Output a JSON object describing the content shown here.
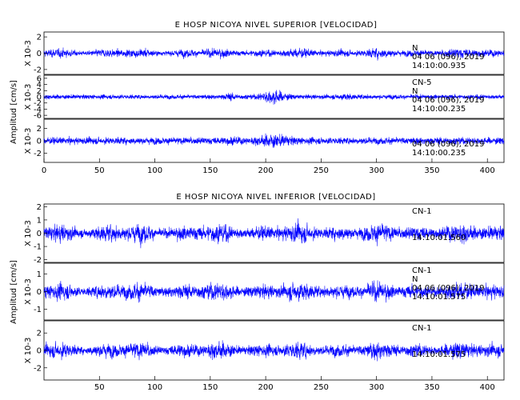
{
  "chart_data": [
    {
      "type": "line",
      "title": "E HOSP NICOYA NIVEL SUPERIOR [VELOCIDAD]",
      "ylabel": "Amplitud [cm/s]",
      "xlim": [
        0,
        415
      ],
      "x_ticks": [
        "0",
        "50",
        "100",
        "150",
        "200",
        "250",
        "300",
        "350",
        "400"
      ],
      "series_color": "#0000ff",
      "panels": [
        {
          "scale_label": "X 10-3",
          "y_ticks": [
            "2",
            "0",
            "-2"
          ],
          "ylim": [
            -2.6,
            2.6
          ],
          "peak_amplitude": 1.6,
          "envelope": "stationary",
          "annotation_lines": [
            "",
            "N",
            "04 06 (096), 2019",
            "14:10:00.935"
          ]
        },
        {
          "scale_label": "X 10-3",
          "y_ticks": [
            "6",
            "4",
            "2",
            "0",
            "-2",
            "-4",
            "-6"
          ],
          "ylim": [
            -7,
            7
          ],
          "peak_amplitude": 6.2,
          "envelope": "burst_at_205s",
          "annotation_lines": [
            "CN-5",
            "N",
            "04 06 (096), 2019",
            "14:10:00.235"
          ]
        },
        {
          "scale_label": "X 10-3",
          "y_ticks": [
            "2",
            "0",
            "-2"
          ],
          "ylim": [
            -3.5,
            3.5
          ],
          "peak_amplitude": 3.0,
          "envelope": "mild_burst_at_205s",
          "annotation_lines": [
            "",
            "",
            "04 06 (096), 2019",
            "14:10:00.235"
          ]
        }
      ]
    },
    {
      "type": "line",
      "title": "E HOSP NICOYA NIVEL INFERIOR [VELOCIDAD]",
      "ylabel": "Amplitud [cm/s]",
      "xlim": [
        0,
        415
      ],
      "x_ticks": [
        "50",
        "100",
        "150",
        "200",
        "250",
        "300",
        "350",
        "400"
      ],
      "series_color": "#0000ff",
      "panels": [
        {
          "scale_label": "X 10-3",
          "y_ticks": [
            "2",
            "1",
            "0",
            "-1",
            "-2"
          ],
          "ylim": [
            -2.2,
            2.2
          ],
          "peak_amplitude": 1.9,
          "envelope": "stationary",
          "annotation_lines": [
            "CN-1",
            "",
            "",
            "14:10:01.560"
          ]
        },
        {
          "scale_label": "X 10-3",
          "y_ticks": [
            "1",
            "0",
            "-1"
          ],
          "ylim": [
            -1.6,
            1.6
          ],
          "peak_amplitude": 1.4,
          "envelope": "stationary",
          "annotation_lines": [
            "CN-1",
            "N",
            "04 06 (096), 2019",
            "14:10:01.575"
          ]
        },
        {
          "scale_label": "X 10-3",
          "y_ticks": [
            "2",
            "0",
            "-2"
          ],
          "ylim": [
            -3.4,
            3.4
          ],
          "peak_amplitude": 2.6,
          "envelope": "stationary",
          "annotation_lines": [
            "CN-1",
            "",
            "",
            "14:10:01.575"
          ]
        }
      ]
    }
  ]
}
